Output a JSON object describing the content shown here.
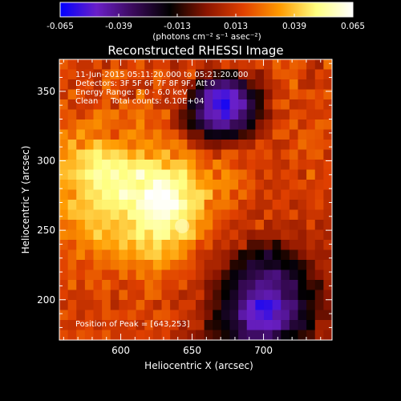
{
  "chart_data": {
    "type": "heatmap",
    "title": "Reconstructed RHESSI Image",
    "xlabel": "Heliocentric X (arcsec)",
    "ylabel": "Heliocentric Y (arcsec)",
    "xlim": [
      557,
      748
    ],
    "ylim": [
      171,
      373
    ],
    "x_ticks": [
      {
        "value": 600,
        "label": "600"
      },
      {
        "value": 650,
        "label": "650"
      },
      {
        "value": 700,
        "label": "700"
      }
    ],
    "y_ticks": [
      {
        "value": 200,
        "label": "200"
      },
      {
        "value": 250,
        "label": "250"
      },
      {
        "value": 300,
        "label": "300"
      },
      {
        "value": 350,
        "label": "350"
      }
    ],
    "colorbar": {
      "min": -0.065,
      "max": 0.065,
      "tick_labels": [
        "-0.065",
        "-0.039",
        "-0.013",
        "0.013",
        "0.039",
        "0.065"
      ],
      "tick_values": [
        -0.065,
        -0.039,
        -0.013,
        0.013,
        0.039,
        0.065
      ],
      "units_label": "(photons cm⁻² s⁻¹ asec⁻²)",
      "stops": [
        "#0000ff",
        "#6a1fc8",
        "#3a0a5a",
        "#000000",
        "#8b1500",
        "#e04000",
        "#ff9a00",
        "#ffff80",
        "#ffffff"
      ]
    },
    "info_lines": [
      "11-Jun-2015 05:11:20.000 to 05:21:20.000",
      "Detectors: 3F 5F 6F 7F 8F 9F, Att 0",
      "Energy Range: 3.0 - 6.0 keV",
      "Clean     Total counts: 6.10E+04"
    ],
    "peak_label": "Position of Peak = [643,253]",
    "peak": {
      "x": 643,
      "y": 253
    },
    "z": [
      [
        0.021,
        0.015,
        0.011,
        0.011,
        0.019,
        0.006,
        0.021,
        0.01,
        0.016,
        0.022,
        0.009,
        0.015,
        0.015,
        0.004,
        0.01,
        0.015,
        0.011,
        0.004,
        0.008,
        0.017,
        0.01,
        0.013,
        0.012,
        0.018,
        0.011,
        0.023,
        0.015,
        0.022,
        0.02,
        0.01,
        0.004,
        0.025
      ],
      [
        0.016,
        0.018,
        0.012,
        0.013,
        0.008,
        0.022,
        0.026,
        0.022,
        0.017,
        0.018,
        0.013,
        0.024,
        0.019,
        0.008,
        0.012,
        0.02,
        -0.004,
        -0.001,
        -0.011,
        -0.015,
        -0.015,
        0.003,
        0.005,
        -0.001,
        0.008,
        0.02,
        0.021,
        0.02,
        0.015,
        0.006,
        0.017,
        0.013
      ],
      [
        0.018,
        0.008,
        0.015,
        0.018,
        0.007,
        0.026,
        0.017,
        0.013,
        0.01,
        0.009,
        0.007,
        0.022,
        0.014,
        0.012,
        0.008,
        -0.0,
        -0.015,
        -0.03,
        -0.034,
        -0.037,
        -0.032,
        -0.025,
        -0.005,
        -0.001,
        0.006,
        0.01,
        0.015,
        0.026,
        0.008,
        0.007,
        0.013,
        0.01
      ],
      [
        0.01,
        0.024,
        0.019,
        0.011,
        0.011,
        0.02,
        0.023,
        0.012,
        0.005,
        0.028,
        0.013,
        0.017,
        0.008,
        0.013,
        0.013,
        -0.011,
        -0.028,
        -0.045,
        -0.052,
        -0.054,
        -0.049,
        -0.035,
        -0.021,
        -0.013,
        0.0,
        0.011,
        0.011,
        0.021,
        0.018,
        0.021,
        0.017,
        0.022
      ],
      [
        0.023,
        0.01,
        0.014,
        0.013,
        0.016,
        0.022,
        0.008,
        0.025,
        0.02,
        0.021,
        0.024,
        0.009,
        0.009,
        0.01,
        0.002,
        -0.02,
        -0.028,
        -0.045,
        -0.056,
        -0.061,
        -0.049,
        -0.046,
        -0.028,
        -0.013,
        0.005,
        0.019,
        0.022,
        0.01,
        0.011,
        0.014,
        0.018,
        0.012
      ],
      [
        0.019,
        0.021,
        0.012,
        0.019,
        0.028,
        0.025,
        0.027,
        0.018,
        0.024,
        0.027,
        0.02,
        0.019,
        0.025,
        0.005,
        -0.006,
        -0.011,
        -0.034,
        -0.045,
        -0.047,
        -0.056,
        -0.046,
        -0.035,
        -0.024,
        -0.01,
        -0.002,
        0.009,
        0.009,
        0.019,
        0.018,
        0.013,
        0.013,
        0.015
      ],
      [
        0.018,
        0.022,
        0.027,
        0.028,
        0.03,
        0.024,
        0.022,
        0.021,
        0.02,
        0.03,
        0.018,
        0.02,
        0.016,
        0.004,
        -0.004,
        -0.014,
        -0.024,
        -0.034,
        -0.041,
        -0.042,
        -0.032,
        -0.03,
        -0.018,
        -0.001,
        0.005,
        0.014,
        0.017,
        0.023,
        0.01,
        0.016,
        0.023,
        0.022
      ],
      [
        0.03,
        0.023,
        0.034,
        0.026,
        0.023,
        0.026,
        0.016,
        0.028,
        0.031,
        0.027,
        0.022,
        0.028,
        0.02,
        0.02,
        0.009,
        -0.003,
        -0.003,
        -0.019,
        -0.02,
        -0.019,
        -0.02,
        -0.009,
        -0.006,
        0.003,
        0.007,
        0.021,
        0.021,
        0.011,
        0.022,
        0.021,
        0.02,
        0.012
      ],
      [
        0.028,
        0.038,
        0.024,
        0.033,
        0.041,
        0.034,
        0.033,
        0.031,
        0.024,
        0.03,
        0.032,
        0.027,
        0.024,
        0.028,
        0.025,
        0.009,
        0.004,
        -0.001,
        -0.002,
        0.001,
        0.002,
        0.006,
        0.005,
        0.018,
        0.014,
        0.008,
        0.009,
        0.016,
        0.024,
        0.02,
        0.019,
        0.018
      ],
      [
        0.029,
        0.035,
        0.043,
        0.045,
        0.048,
        0.041,
        0.044,
        0.041,
        0.034,
        0.04,
        0.028,
        0.034,
        0.039,
        0.023,
        0.029,
        0.028,
        0.021,
        0.017,
        0.008,
        0.021,
        0.021,
        0.013,
        0.018,
        0.015,
        0.019,
        0.01,
        0.018,
        0.022,
        0.012,
        0.021,
        0.022,
        0.008
      ],
      [
        0.037,
        0.037,
        0.04,
        0.044,
        0.049,
        0.052,
        0.048,
        0.05,
        0.045,
        0.047,
        0.047,
        0.045,
        0.034,
        0.04,
        0.04,
        0.033,
        0.023,
        0.019,
        0.029,
        0.023,
        0.016,
        0.012,
        0.016,
        0.014,
        0.014,
        0.011,
        0.009,
        0.019,
        0.014,
        0.015,
        0.012,
        0.017
      ],
      [
        0.038,
        0.041,
        0.045,
        0.05,
        0.054,
        0.05,
        0.056,
        0.049,
        0.052,
        0.061,
        0.05,
        0.052,
        0.052,
        0.045,
        0.048,
        0.037,
        0.028,
        0.033,
        0.018,
        0.031,
        0.026,
        0.024,
        0.018,
        0.009,
        0.019,
        0.011,
        0.017,
        0.015,
        0.007,
        0.026,
        0.012,
        0.016
      ],
      [
        0.034,
        0.036,
        0.04,
        0.043,
        0.052,
        0.049,
        0.051,
        0.053,
        0.051,
        0.048,
        0.053,
        0.063,
        0.059,
        0.052,
        0.049,
        0.042,
        0.034,
        0.031,
        0.03,
        0.029,
        0.028,
        0.018,
        0.021,
        0.014,
        0.009,
        0.012,
        0.011,
        0.017,
        0.019,
        0.012,
        0.015,
        0.016
      ],
      [
        0.031,
        0.028,
        0.04,
        0.045,
        0.044,
        0.051,
        0.049,
        0.06,
        0.056,
        0.055,
        0.066,
        0.064,
        0.065,
        0.059,
        0.046,
        0.043,
        0.044,
        0.04,
        0.021,
        0.029,
        0.015,
        0.025,
        0.018,
        0.009,
        0.018,
        0.01,
        0.016,
        0.013,
        0.012,
        0.014,
        0.017,
        0.009
      ],
      [
        0.033,
        0.041,
        0.037,
        0.039,
        0.046,
        0.047,
        0.047,
        0.05,
        0.048,
        0.059,
        0.062,
        0.064,
        0.064,
        0.064,
        0.055,
        0.045,
        0.043,
        0.023,
        0.026,
        0.026,
        0.023,
        0.011,
        0.015,
        0.009,
        0.009,
        0.016,
        0.015,
        0.006,
        0.01,
        0.014,
        0.018,
        0.01
      ],
      [
        0.031,
        0.038,
        0.039,
        0.041,
        0.04,
        0.041,
        0.045,
        0.041,
        0.051,
        0.052,
        0.057,
        0.06,
        0.061,
        0.054,
        0.047,
        0.043,
        0.037,
        0.028,
        0.021,
        0.019,
        0.016,
        0.014,
        0.007,
        0.006,
        0.019,
        0.009,
        0.013,
        0.019,
        0.008,
        0.012,
        0.012,
        0.009
      ],
      [
        0.024,
        0.026,
        0.032,
        0.039,
        0.037,
        0.041,
        0.037,
        0.041,
        0.04,
        0.05,
        0.053,
        0.054,
        0.053,
        0.046,
        0.046,
        0.038,
        0.029,
        0.029,
        0.018,
        0.014,
        0.008,
        0.011,
        0.012,
        0.02,
        0.004,
        0.009,
        0.007,
        0.005,
        0.006,
        0.018,
        0.004,
        0.008
      ],
      [
        0.029,
        0.028,
        0.03,
        0.034,
        0.043,
        0.034,
        0.038,
        0.04,
        0.044,
        0.049,
        0.041,
        0.052,
        0.051,
        0.041,
        0.045,
        0.041,
        0.029,
        0.02,
        0.015,
        0.01,
        0.015,
        0.007,
        0.002,
        0.004,
        0.004,
        0.004,
        0.009,
        0.007,
        0.003,
        0.009,
        0.01,
        0.005
      ],
      [
        0.021,
        0.018,
        0.028,
        0.027,
        0.033,
        0.035,
        0.033,
        0.041,
        0.034,
        0.043,
        0.038,
        0.045,
        0.036,
        0.038,
        0.031,
        0.028,
        0.016,
        0.021,
        0.008,
        0.012,
        0.004,
        0.011,
        -0.007,
        -0.007,
        -0.004,
        -0.013,
        -0.001,
        0.003,
        0.003,
        0.009,
        0.004,
        0.011
      ],
      [
        0.018,
        0.023,
        0.029,
        0.02,
        0.028,
        0.025,
        0.029,
        0.034,
        0.031,
        0.036,
        0.04,
        0.041,
        0.033,
        0.035,
        0.03,
        0.02,
        0.011,
        0.01,
        0.006,
        0.003,
        -0.002,
        -0.014,
        -0.012,
        -0.016,
        -0.026,
        -0.016,
        -0.013,
        -0.008,
        -0.001,
        0.005,
        0.003,
        0.003
      ],
      [
        0.017,
        0.023,
        0.015,
        0.017,
        0.024,
        0.023,
        0.026,
        0.028,
        0.025,
        0.027,
        0.026,
        0.034,
        0.03,
        0.023,
        0.021,
        0.019,
        0.012,
        0.006,
        0.006,
        0.002,
        -0.012,
        -0.013,
        -0.026,
        -0.024,
        -0.021,
        -0.022,
        -0.016,
        -0.018,
        -0.012,
        -0.005,
        0.005,
        0.007
      ],
      [
        0.017,
        0.02,
        0.016,
        0.021,
        0.021,
        0.015,
        0.015,
        0.026,
        0.018,
        0.028,
        0.023,
        0.026,
        0.018,
        0.018,
        0.017,
        0.016,
        0.011,
        0.004,
        0.0,
        -0.009,
        -0.018,
        -0.023,
        -0.028,
        -0.031,
        -0.036,
        -0.038,
        -0.028,
        -0.021,
        -0.016,
        -0.004,
        0.0,
        0.006
      ],
      [
        0.014,
        0.025,
        0.011,
        0.023,
        0.017,
        0.024,
        0.017,
        0.011,
        0.015,
        0.016,
        0.025,
        0.021,
        0.015,
        0.015,
        0.021,
        0.009,
        0.007,
        -0.002,
        -0.005,
        -0.015,
        -0.019,
        -0.031,
        -0.033,
        -0.04,
        -0.039,
        -0.036,
        -0.031,
        -0.032,
        -0.016,
        -0.009,
        -0.011,
        0.004
      ],
      [
        0.016,
        0.011,
        0.012,
        0.013,
        0.019,
        0.02,
        0.009,
        0.023,
        0.014,
        0.013,
        0.024,
        0.023,
        0.013,
        0.013,
        0.006,
        0.009,
        0.013,
        -0.001,
        -0.008,
        -0.016,
        -0.023,
        -0.032,
        -0.04,
        -0.043,
        -0.045,
        -0.043,
        -0.031,
        -0.029,
        -0.017,
        -0.016,
        -0.006,
        0.0
      ],
      [
        0.009,
        0.018,
        0.011,
        0.011,
        0.013,
        0.02,
        0.007,
        0.013,
        0.014,
        0.023,
        0.014,
        0.008,
        0.019,
        0.007,
        0.014,
        0.014,
        0.003,
        -0.004,
        -0.007,
        -0.021,
        -0.024,
        -0.038,
        -0.049,
        -0.059,
        -0.058,
        -0.053,
        -0.039,
        -0.037,
        -0.024,
        -0.012,
        -0.006,
        -0.001
      ],
      [
        0.021,
        0.017,
        0.009,
        0.017,
        0.013,
        0.02,
        0.018,
        0.016,
        0.02,
        0.015,
        0.012,
        0.021,
        0.02,
        0.016,
        0.012,
        0.008,
        0.004,
        -0.002,
        -0.015,
        -0.022,
        -0.026,
        -0.044,
        -0.048,
        -0.052,
        -0.055,
        -0.044,
        -0.042,
        -0.033,
        -0.02,
        -0.014,
        -0.004,
        -0.004
      ],
      [
        0.012,
        0.011,
        0.014,
        0.017,
        0.009,
        0.014,
        0.013,
        0.012,
        0.015,
        0.008,
        0.019,
        0.011,
        0.015,
        0.014,
        0.003,
        0.01,
        0.009,
        -0.011,
        -0.013,
        -0.018,
        -0.024,
        -0.03,
        -0.047,
        -0.047,
        -0.048,
        -0.047,
        -0.037,
        -0.026,
        -0.024,
        -0.016,
        0.004,
        0.004
      ],
      [
        0.018,
        0.014,
        0.02,
        0.018,
        0.015,
        0.021,
        0.012,
        0.013,
        0.013,
        0.016,
        0.015,
        0.012,
        0.016,
        0.006,
        0.006,
        0.002,
        -0.001,
        -0.006,
        -0.009,
        -0.014,
        -0.021,
        -0.031,
        -0.034,
        -0.034,
        -0.036,
        -0.028,
        -0.018,
        -0.016,
        -0.011,
        -0.008,
        0.005,
        0.002
      ]
    ]
  }
}
